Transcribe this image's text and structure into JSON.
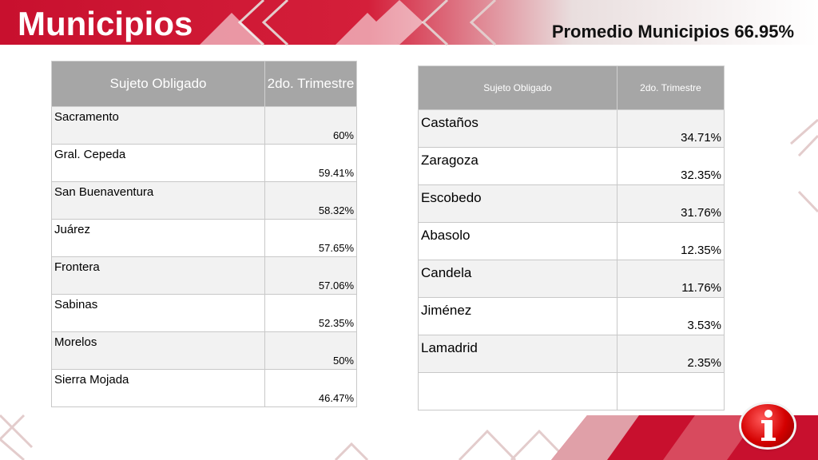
{
  "slide": {
    "title": "Municipios",
    "average": "Promedio Municipios 66.95%",
    "colors": {
      "brand_red": "#c8102e",
      "header_gray": "#a6a6a6",
      "row_stripe": "#f2f2f2"
    },
    "logo_icon": "info-i-logo-icon"
  },
  "table_left": {
    "headers": [
      "Sujeto Obligado",
      "2do. Trimestre"
    ],
    "rows": [
      {
        "name": "Sacramento",
        "value": "60%"
      },
      {
        "name": "Gral. Cepeda",
        "value": "59.41%"
      },
      {
        "name": "San Buenaventura",
        "value": "58.32%"
      },
      {
        "name": "Juárez",
        "value": "57.65%"
      },
      {
        "name": "Frontera",
        "value": "57.06%"
      },
      {
        "name": "Sabinas",
        "value": "52.35%"
      },
      {
        "name": "Morelos",
        "value": "50%"
      },
      {
        "name": "Sierra Mojada",
        "value": "46.47%"
      }
    ]
  },
  "table_right": {
    "headers": [
      "Sujeto Obligado",
      "2do. Trimestre"
    ],
    "rows": [
      {
        "name": "Castaños",
        "value": "34.71%"
      },
      {
        "name": "Zaragoza",
        "value": "32.35%"
      },
      {
        "name": "Escobedo",
        "value": "31.76%"
      },
      {
        "name": "Abasolo",
        "value": "12.35%"
      },
      {
        "name": "Candela",
        "value": "11.76%"
      },
      {
        "name": "Jiménez",
        "value": "3.53%"
      },
      {
        "name": "Lamadrid",
        "value": "2.35%"
      },
      {
        "name": "",
        "value": ""
      }
    ]
  }
}
